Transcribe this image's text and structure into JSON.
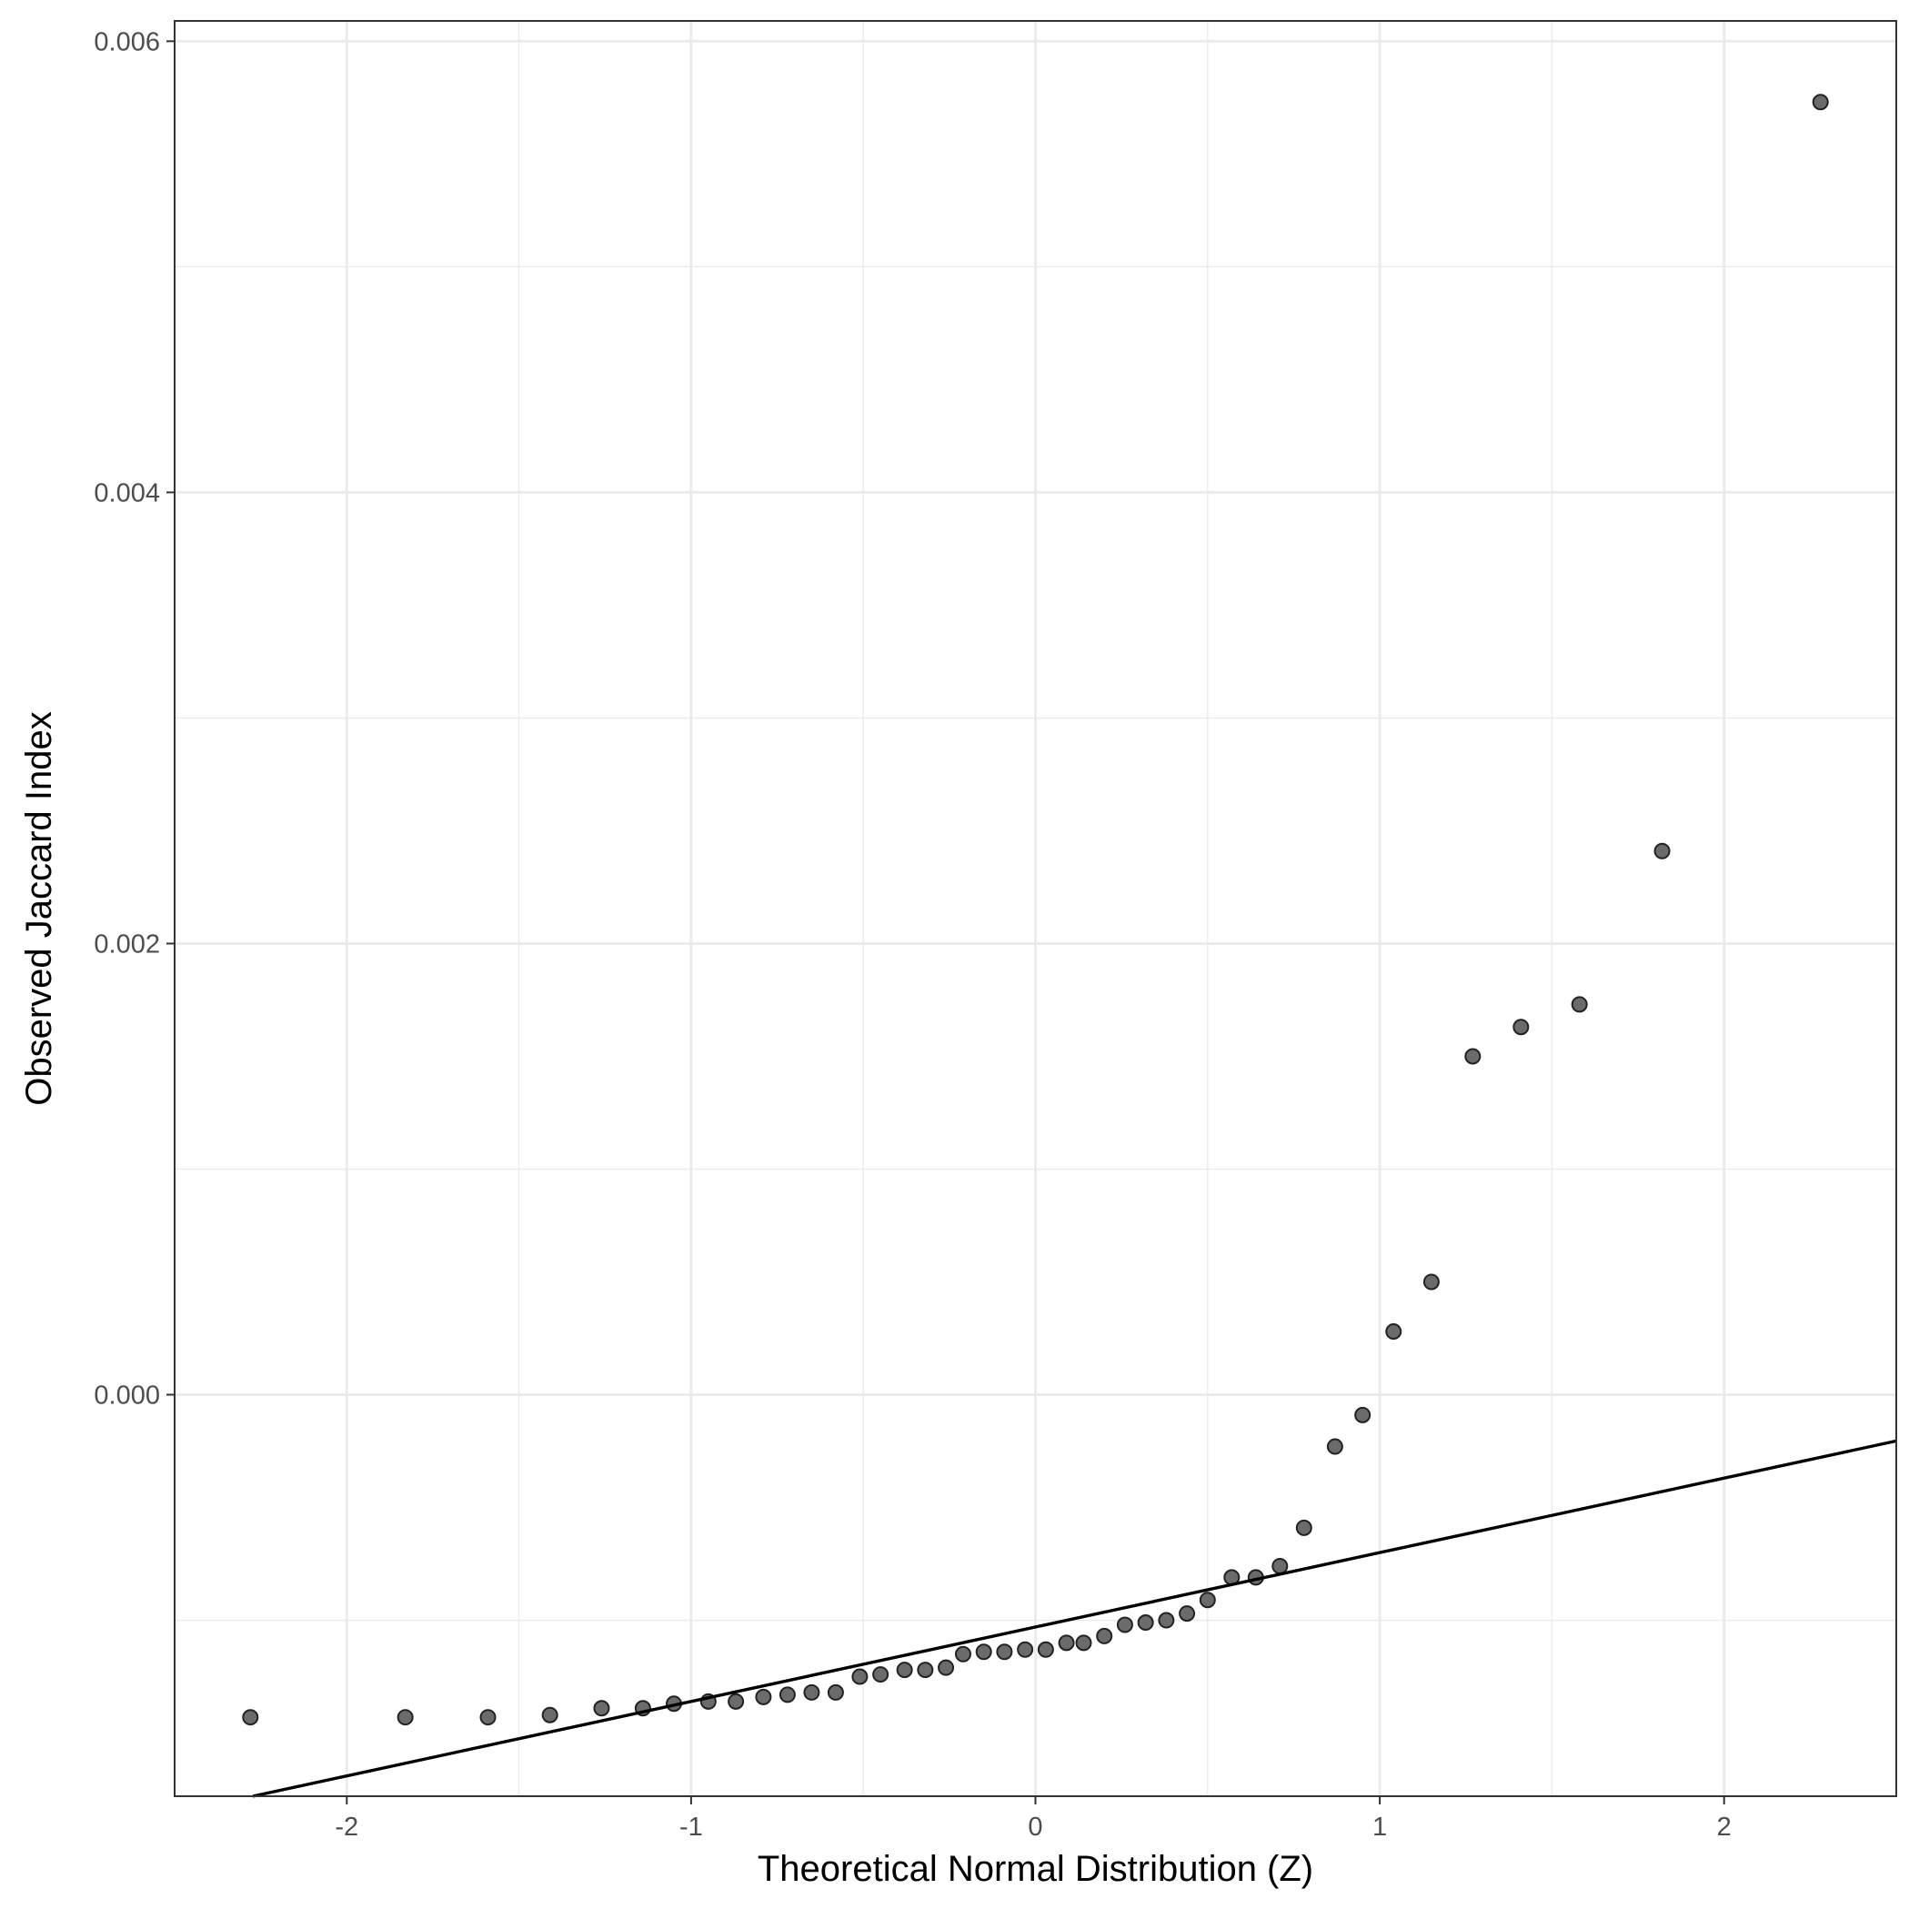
{
  "chart_data": {
    "type": "scatter",
    "title": "",
    "xlabel": "Theoretical Normal Distribution (Z)",
    "ylabel": "Observed Jaccard Index",
    "xlim": [
      -2.5,
      2.5
    ],
    "ylim": [
      -0.00178,
      0.00609
    ],
    "x_ticks": [
      -2,
      -1,
      0,
      1,
      2
    ],
    "x_tick_labels": [
      "-2",
      "-1",
      "0",
      "1",
      "2"
    ],
    "y_ticks": [
      0.0,
      0.002,
      0.004,
      0.006
    ],
    "y_tick_labels": [
      "0.000",
      "0.002",
      "0.004",
      "0.006"
    ],
    "grid": true,
    "legend": "none",
    "colors": {
      "point_fill": "#6b6b6b",
      "point_stroke": "#222222",
      "line": "#000000",
      "grid": "#ebebeb",
      "panel_border": "#333333"
    },
    "reference_line": {
      "type": "qq-line",
      "intercept": -0.00103,
      "slope": 0.00033
    },
    "series": [
      {
        "points": [
          [
            -2.28,
            -0.00143
          ],
          [
            -1.83,
            -0.00143
          ],
          [
            -1.59,
            -0.00143
          ],
          [
            -1.41,
            -0.00142
          ],
          [
            -1.26,
            -0.00139
          ],
          [
            -1.14,
            -0.00139
          ],
          [
            -1.05,
            -0.00137
          ],
          [
            -0.95,
            -0.00136
          ],
          [
            -0.87,
            -0.00136
          ],
          [
            -0.79,
            -0.00134
          ],
          [
            -0.72,
            -0.00133
          ],
          [
            -0.65,
            -0.00132
          ],
          [
            -0.58,
            -0.00132
          ],
          [
            -0.51,
            -0.00125
          ],
          [
            -0.45,
            -0.00124
          ],
          [
            -0.38,
            -0.00122
          ],
          [
            -0.32,
            -0.00122
          ],
          [
            -0.26,
            -0.00121
          ],
          [
            -0.21,
            -0.00115
          ],
          [
            -0.15,
            -0.00114
          ],
          [
            -0.09,
            -0.00114
          ],
          [
            -0.03,
            -0.00113
          ],
          [
            0.03,
            -0.00113
          ],
          [
            0.09,
            -0.0011
          ],
          [
            0.14,
            -0.0011
          ],
          [
            0.2,
            -0.00107
          ],
          [
            0.26,
            -0.00102
          ],
          [
            0.32,
            -0.00101
          ],
          [
            0.38,
            -0.001
          ],
          [
            0.44,
            -0.00097
          ],
          [
            0.5,
            -0.00091
          ],
          [
            0.57,
            -0.00081
          ],
          [
            0.64,
            -0.00081
          ],
          [
            0.71,
            -0.00076
          ],
          [
            0.78,
            -0.00059
          ],
          [
            0.87,
            -0.00023
          ],
          [
            0.95,
            -9e-05
          ],
          [
            1.04,
            0.00028
          ],
          [
            1.15,
            0.0005
          ],
          [
            1.27,
            0.0015
          ],
          [
            1.41,
            0.00163
          ],
          [
            1.58,
            0.00173
          ],
          [
            1.82,
            0.00241
          ],
          [
            2.28,
            0.00573
          ]
        ]
      }
    ]
  }
}
